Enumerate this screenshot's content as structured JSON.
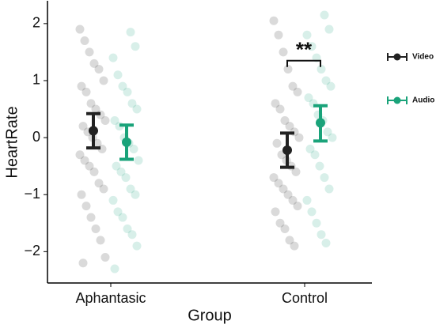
{
  "chart_data": {
    "type": "errorbar-dots",
    "x_label": "Group",
    "y_label": "HeartRate",
    "categories": [
      "Aphantasic",
      "Control"
    ],
    "series": [
      {
        "name": "Video",
        "color": "#222222",
        "values": [
          0.12,
          -0.22
        ],
        "ci_low": [
          -0.18,
          -0.52
        ],
        "ci_high": [
          0.42,
          0.08
        ],
        "points": [
          [
            1.9,
            1.7,
            1.5,
            1.3,
            1.2,
            1.0,
            0.9,
            0.8,
            0.6,
            0.5,
            0.4,
            0.3,
            0.2,
            0.1,
            0.0,
            -0.1,
            -0.2,
            -0.3,
            -0.4,
            -0.5,
            -0.6,
            -0.8,
            -0.9,
            -1.0,
            -1.2,
            -1.4,
            -1.6,
            -1.8,
            -2.1,
            -2.2
          ],
          [
            2.05,
            1.8,
            1.5,
            1.2,
            0.9,
            0.8,
            0.6,
            0.5,
            0.3,
            0.2,
            0.1,
            0.0,
            -0.1,
            -0.3,
            -0.4,
            -0.5,
            -0.6,
            -0.7,
            -0.8,
            -0.9,
            -1.0,
            -1.1,
            -1.2,
            -1.3,
            -1.5,
            -1.6,
            -1.8,
            -1.9
          ]
        ]
      },
      {
        "name": "Audio",
        "color": "#1aa37a",
        "values": [
          -0.08,
          0.26
        ],
        "ci_low": [
          -0.38,
          -0.06
        ],
        "ci_high": [
          0.22,
          0.56
        ],
        "points": [
          [
            1.85,
            1.6,
            1.4,
            1.1,
            0.9,
            0.8,
            0.6,
            0.5,
            0.3,
            0.2,
            0.0,
            -0.1,
            -0.2,
            -0.4,
            -0.5,
            -0.6,
            -0.7,
            -0.9,
            -1.0,
            -1.1,
            -1.3,
            -1.4,
            -1.6,
            -1.7,
            -1.9,
            -2.3
          ],
          [
            2.15,
            1.9,
            1.8,
            1.6,
            1.4,
            1.2,
            1.0,
            0.9,
            0.7,
            0.6,
            0.4,
            0.3,
            0.1,
            0.0,
            -0.2,
            -0.3,
            -0.5,
            -0.7,
            -0.9,
            -1.1,
            -1.3,
            -1.5,
            -1.7,
            -1.85
          ]
        ]
      }
    ],
    "ylim": [
      -2.55,
      2.4
    ],
    "yticks": [
      {
        "value": -2,
        "label": "−2"
      },
      {
        "value": -1,
        "label": "−1"
      },
      0,
      1,
      2
    ],
    "significance": {
      "label": "**",
      "category": 1,
      "y": 1.35
    }
  }
}
